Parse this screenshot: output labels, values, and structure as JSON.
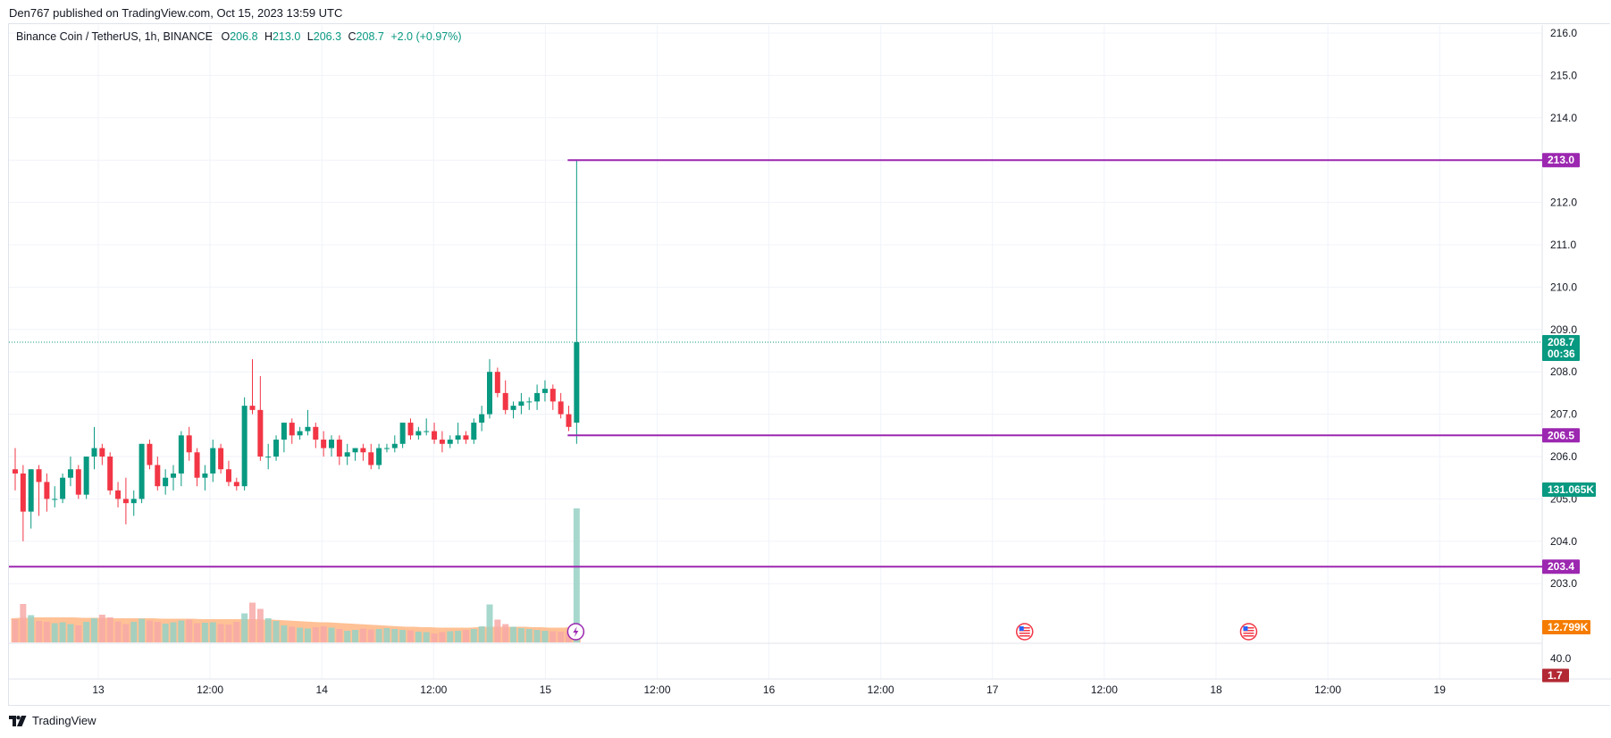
{
  "header": {
    "publish_text": "Den767 published on TradingView.com, Oct 15, 2023 13:59 UTC"
  },
  "legend": {
    "symbol": "Binance Coin / TetherUS, 1h, BINANCE",
    "open_label": "O",
    "open": "206.8",
    "high_label": "H",
    "high": "213.0",
    "low_label": "L",
    "low": "206.3",
    "close_label": "C",
    "close": "208.7",
    "change": "+2.0 (+0.97%)"
  },
  "footer": {
    "brand": "TradingView"
  },
  "colors": {
    "up": "#089981",
    "down": "#f23645",
    "level": "#9c27b0",
    "vol_up": "#98d1c6",
    "vol_down": "#f7a9a7",
    "vol_ma": "#ffb27a",
    "price_tag": "#089981",
    "osc_tag": "#b22833",
    "vol_tag": "#f57c00"
  },
  "chart_data": {
    "type": "candlestick",
    "symbol": "BNBUSDT",
    "interval": "1h",
    "ylim": [
      202.4,
      216.2
    ],
    "y_ticks": [
      "216.0",
      "215.0",
      "214.0",
      "213.0",
      "212.0",
      "211.0",
      "210.0",
      "209.0",
      "208.0",
      "207.0",
      "206.0",
      "205.0",
      "204.0",
      "203.0"
    ],
    "x_ticks": [
      "13",
      "12:00",
      "14",
      "12:00",
      "15",
      "12:00",
      "16",
      "12:00",
      "17",
      "12:00",
      "18",
      "12:00",
      "19"
    ],
    "candles": [
      [
        205.7,
        206.2,
        205.2,
        205.6
      ],
      [
        205.6,
        205.8,
        204.0,
        204.7
      ],
      [
        204.7,
        205.7,
        204.3,
        205.7
      ],
      [
        205.7,
        205.8,
        204.6,
        205.4
      ],
      [
        205.4,
        205.6,
        204.7,
        205.0
      ],
      [
        205.0,
        205.3,
        204.8,
        205.0
      ],
      [
        205.0,
        205.6,
        204.9,
        205.5
      ],
      [
        205.5,
        206.0,
        205.3,
        205.7
      ],
      [
        205.7,
        205.8,
        205.0,
        205.1
      ],
      [
        205.1,
        206.0,
        205.0,
        206.0
      ],
      [
        206.0,
        206.7,
        205.7,
        206.2
      ],
      [
        206.2,
        206.3,
        205.8,
        206.0
      ],
      [
        206.0,
        206.1,
        205.1,
        205.2
      ],
      [
        205.2,
        205.4,
        204.8,
        205.0
      ],
      [
        205.0,
        205.5,
        204.4,
        204.9
      ],
      [
        204.9,
        205.2,
        204.6,
        205.0
      ],
      [
        205.0,
        206.3,
        204.9,
        206.3
      ],
      [
        206.3,
        206.4,
        205.7,
        205.8
      ],
      [
        205.8,
        206.0,
        205.2,
        205.3
      ],
      [
        205.3,
        205.7,
        205.1,
        205.5
      ],
      [
        205.5,
        205.8,
        205.2,
        205.6
      ],
      [
        205.6,
        206.6,
        205.3,
        206.5
      ],
      [
        206.5,
        206.7,
        205.9,
        206.1
      ],
      [
        206.1,
        206.2,
        205.3,
        205.5
      ],
      [
        205.5,
        205.8,
        205.2,
        205.6
      ],
      [
        205.6,
        206.4,
        205.4,
        206.2
      ],
      [
        206.2,
        206.3,
        205.6,
        205.7
      ],
      [
        205.7,
        205.9,
        205.3,
        205.4
      ],
      [
        205.4,
        205.5,
        205.2,
        205.3
      ],
      [
        205.3,
        207.4,
        205.2,
        207.2
      ],
      [
        207.2,
        208.3,
        207.0,
        207.1
      ],
      [
        207.1,
        207.9,
        205.9,
        206.0
      ],
      [
        206.0,
        206.3,
        205.7,
        206.0
      ],
      [
        206.0,
        206.5,
        205.9,
        206.4
      ],
      [
        206.4,
        206.8,
        206.1,
        206.8
      ],
      [
        206.8,
        206.9,
        206.3,
        206.5
      ],
      [
        206.5,
        206.7,
        206.4,
        206.6
      ],
      [
        206.6,
        207.1,
        206.5,
        206.7
      ],
      [
        206.7,
        206.8,
        206.2,
        206.4
      ],
      [
        206.4,
        206.6,
        206.0,
        206.2
      ],
      [
        206.2,
        206.5,
        206.0,
        206.4
      ],
      [
        206.4,
        206.5,
        205.8,
        206.0
      ],
      [
        206.0,
        206.3,
        205.8,
        206.1
      ],
      [
        206.1,
        206.2,
        205.9,
        206.2
      ],
      [
        206.2,
        206.3,
        205.9,
        206.1
      ],
      [
        206.1,
        206.3,
        205.7,
        205.8
      ],
      [
        205.8,
        206.3,
        205.7,
        206.2
      ],
      [
        206.2,
        206.3,
        206.1,
        206.2
      ],
      [
        206.2,
        206.5,
        206.1,
        206.3
      ],
      [
        206.3,
        206.8,
        206.2,
        206.8
      ],
      [
        206.8,
        206.9,
        206.4,
        206.5
      ],
      [
        206.5,
        206.7,
        206.4,
        206.6
      ],
      [
        206.6,
        206.9,
        206.5,
        206.6
      ],
      [
        206.6,
        206.8,
        206.3,
        206.4
      ],
      [
        206.4,
        206.6,
        206.1,
        206.3
      ],
      [
        206.3,
        206.5,
        206.2,
        206.4
      ],
      [
        206.4,
        206.8,
        206.3,
        206.5
      ],
      [
        206.5,
        206.6,
        206.3,
        206.4
      ],
      [
        206.4,
        206.9,
        206.3,
        206.8
      ],
      [
        206.8,
        207.2,
        206.6,
        207.0
      ],
      [
        207.0,
        208.3,
        206.9,
        208.0
      ],
      [
        208.0,
        208.1,
        207.4,
        207.5
      ],
      [
        207.5,
        207.8,
        207.0,
        207.1
      ],
      [
        207.1,
        207.3,
        206.9,
        207.2
      ],
      [
        207.2,
        207.5,
        207.0,
        207.3
      ],
      [
        207.3,
        207.4,
        207.1,
        207.3
      ],
      [
        207.3,
        207.7,
        207.1,
        207.5
      ],
      [
        207.5,
        207.8,
        207.3,
        207.6
      ],
      [
        207.6,
        207.7,
        207.1,
        207.3
      ],
      [
        207.3,
        207.5,
        206.9,
        207.0
      ],
      [
        207.0,
        207.2,
        206.6,
        206.7
      ],
      [
        206.8,
        213.0,
        206.3,
        208.7
      ]
    ],
    "volume": [
      5.2,
      8.6,
      6.1,
      4.8,
      4.6,
      4.3,
      4.5,
      4.1,
      3.8,
      4.6,
      5.4,
      6.2,
      5.6,
      4.7,
      4.1,
      4.6,
      5.3,
      4.9,
      4.6,
      4.2,
      4.5,
      4.9,
      5.1,
      4.3,
      4.4,
      4.5,
      4.1,
      4.0,
      4.6,
      6.5,
      8.9,
      7.5,
      5.4,
      4.8,
      3.8,
      3.5,
      3.3,
      3.1,
      3.4,
      3.6,
      3.3,
      3.0,
      2.6,
      2.8,
      3.1,
      2.9,
      3.0,
      3.2,
      3.0,
      2.8,
      2.7,
      2.4,
      2.3,
      2.0,
      2.3,
      2.5,
      2.6,
      2.8,
      3.0,
      3.6,
      8.5,
      5.1,
      4.1,
      3.5,
      3.2,
      3.0,
      2.8,
      2.6,
      2.5,
      2.4,
      2.3,
      30.0
    ],
    "volume_ma": [
      5.4,
      5.5,
      5.5,
      5.6,
      5.6,
      5.6,
      5.6,
      5.6,
      5.6,
      5.5,
      5.5,
      5.5,
      5.5,
      5.4,
      5.4,
      5.4,
      5.4,
      5.4,
      5.4,
      5.3,
      5.3,
      5.3,
      5.3,
      5.3,
      5.2,
      5.2,
      5.2,
      5.2,
      5.2,
      5.2,
      5.2,
      5.2,
      5.1,
      5.1,
      5.0,
      4.9,
      4.8,
      4.7,
      4.6,
      4.5,
      4.5,
      4.4,
      4.3,
      4.2,
      4.1,
      4.0,
      3.9,
      3.8,
      3.7,
      3.6,
      3.5,
      3.5,
      3.4,
      3.4,
      3.3,
      3.3,
      3.3,
      3.3,
      3.3,
      3.4,
      3.5,
      3.5,
      3.5,
      3.5,
      3.5,
      3.5,
      3.4,
      3.4,
      3.3,
      3.3,
      3.3,
      3.6
    ],
    "levels": [
      {
        "value": 213.0,
        "label": "213.0",
        "starts_at_last_bar": true
      },
      {
        "value": 206.5,
        "label": "206.5",
        "starts_at_last_bar": true
      },
      {
        "value": 203.4,
        "label": "203.4",
        "starts_at_last_bar": false
      }
    ],
    "last_price": {
      "value": 208.7,
      "label": "208.7",
      "countdown": "00:36"
    },
    "volume_label": "131.065K",
    "volume_ma_label": "12.799K",
    "oscillator": {
      "tick": "40.0",
      "value_label": "1.7"
    },
    "event_markers": [
      {
        "type": "dividend-lightning",
        "after_bars": 0
      },
      {
        "type": "us-flag-event",
        "after_bars": 20
      },
      {
        "type": "us-flag-event",
        "after_bars": 30
      }
    ]
  }
}
